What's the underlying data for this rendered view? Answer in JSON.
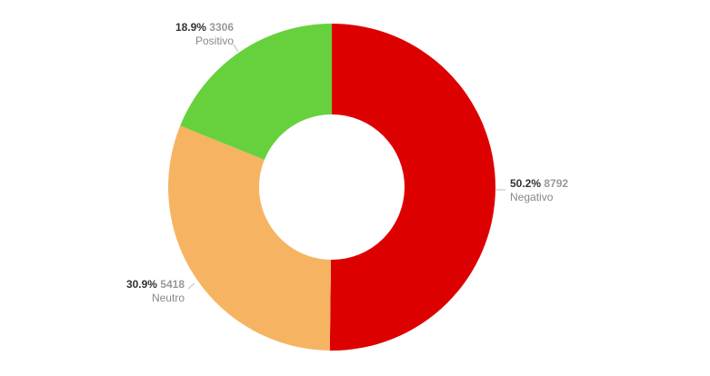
{
  "chart_data": {
    "type": "pie",
    "donut": true,
    "title": "",
    "slices": [
      {
        "name": "Negativo",
        "value": 8792,
        "percent_label": "50.2%",
        "value_label": "8792",
        "color": "#dd0000"
      },
      {
        "name": "Neutro",
        "value": 5418,
        "percent_label": "30.9%",
        "value_label": "5418",
        "color": "#f6b463"
      },
      {
        "name": "Positivo",
        "value": 3306,
        "percent_label": "18.9%",
        "value_label": "3306",
        "color": "#66d13d"
      }
    ],
    "start_angle": "top (12 o'clock)",
    "direction": "clockwise",
    "legend": "none"
  }
}
